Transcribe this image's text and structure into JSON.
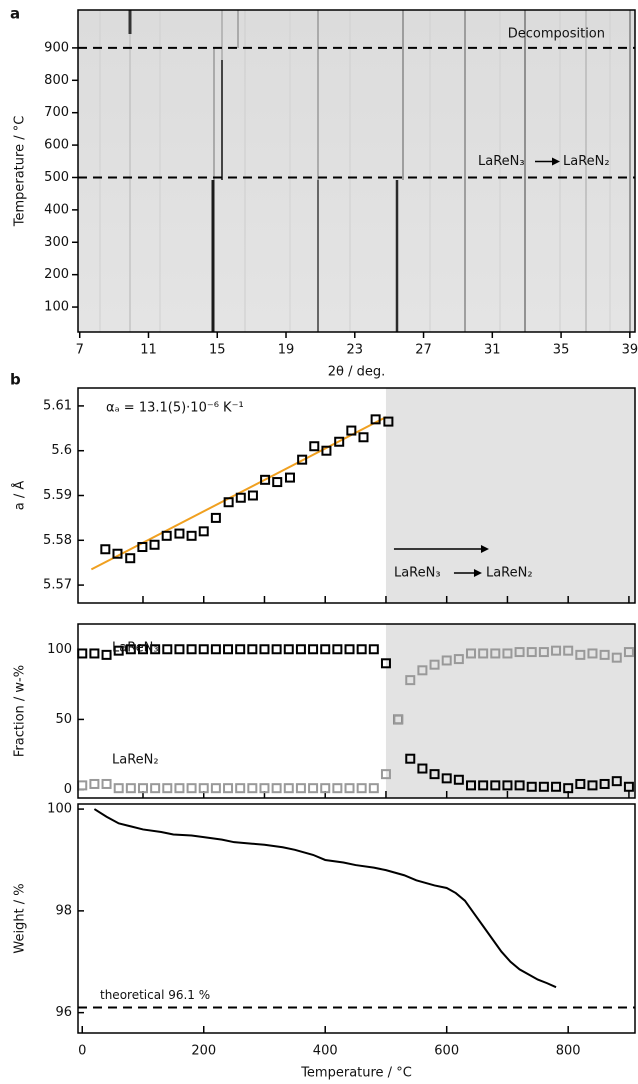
{
  "chart_data": [
    {
      "type": "image",
      "panel": "a",
      "x_label": "2θ / deg.",
      "y_label": "Temperature / °C",
      "xlim": [
        6.9,
        39.3
      ],
      "ylim": [
        23,
        1017
      ],
      "xticks": [
        7,
        11,
        15,
        19,
        23,
        27,
        31,
        35,
        39
      ],
      "yticks": [
        100,
        200,
        300,
        400,
        500,
        600,
        700,
        800,
        900
      ],
      "hlines": [
        {
          "value": 900,
          "label": "Decomposition"
        },
        {
          "value": 500,
          "label_from": "LaReN₃",
          "label_to": "LaReN₂"
        }
      ]
    },
    {
      "type": "scatter",
      "panel": "b",
      "y_label": "a / Å",
      "xlim": [
        -7,
        910
      ],
      "ylim": [
        5.566,
        5.614
      ],
      "xticks": [
        100,
        200,
        300,
        400,
        500,
        600,
        700,
        800,
        900
      ],
      "xtick_labels": false,
      "yticks": [
        5.57,
        5.58,
        5.59,
        5.6,
        5.61
      ],
      "shade_from": 500,
      "x": [
        38,
        58,
        79,
        99,
        119,
        139,
        160,
        180,
        200,
        220,
        241,
        261,
        281,
        301,
        321,
        342,
        362,
        382,
        402,
        423,
        443,
        463,
        483,
        504
      ],
      "series": [
        {
          "color": "#000000",
          "values": [
            5.578,
            5.577,
            5.576,
            5.5785,
            5.579,
            5.581,
            5.5815,
            5.581,
            5.582,
            5.585,
            5.5885,
            5.5895,
            5.59,
            5.5935,
            5.593,
            5.594,
            5.598,
            5.601,
            5.6,
            5.602,
            5.6045,
            5.603,
            5.607,
            5.6065
          ]
        }
      ],
      "fit": {
        "color": "#f0a020",
        "x": [
          15,
          500
        ],
        "values": [
          5.5735,
          5.6075
        ]
      },
      "annotation": "αₐ = 13.1(5)·10⁻⁶ K⁻¹",
      "transition": {
        "from": "LaReN₃",
        "to": "LaReN₂"
      }
    },
    {
      "type": "scatter",
      "y_label": "Fraction / w-%",
      "xlim": [
        -7,
        910
      ],
      "ylim": [
        -6,
        118
      ],
      "xticks": [
        100,
        200,
        300,
        400,
        500,
        600,
        700,
        800,
        900
      ],
      "xtick_labels": false,
      "yticks": [
        0,
        50,
        100
      ],
      "shade_from": 500,
      "x": [
        0,
        20,
        40,
        60,
        80,
        100,
        120,
        140,
        160,
        180,
        200,
        220,
        240,
        260,
        280,
        300,
        320,
        340,
        360,
        380,
        400,
        420,
        440,
        460,
        480,
        500,
        520,
        540,
        560,
        580,
        600,
        620,
        640,
        660,
        680,
        700,
        720,
        740,
        760,
        780,
        800,
        820,
        840,
        860,
        880,
        900
      ],
      "series": [
        {
          "name": "LaReN₃",
          "color": "#000000",
          "values": [
            97,
            97,
            96,
            99,
            100,
            100,
            100,
            100,
            100,
            100,
            100,
            100,
            100,
            100,
            100,
            100,
            100,
            100,
            100,
            100,
            100,
            100,
            100,
            100,
            100,
            90,
            50,
            22,
            15,
            11,
            8,
            7,
            3,
            3,
            3,
            3,
            3,
            2,
            2,
            2,
            1,
            4,
            3,
            4,
            6,
            2
          ]
        },
        {
          "name": "LaReN₂",
          "color": "#999999",
          "values": [
            3,
            4,
            4,
            1,
            1,
            1,
            1,
            1,
            1,
            1,
            1,
            1,
            1,
            1,
            1,
            1,
            1,
            1,
            1,
            1,
            1,
            1,
            1,
            1,
            1,
            11,
            50,
            78,
            85,
            89,
            92,
            93,
            97,
            97,
            97,
            97,
            98,
            98,
            98,
            99,
            99,
            96,
            97,
            96,
            94,
            98
          ]
        }
      ]
    },
    {
      "type": "line",
      "y_label": "Weight / %",
      "x_label": "Temperature / °C",
      "xlim": [
        -7,
        910
      ],
      "ylim": [
        95.6,
        100.1
      ],
      "xticks": [
        0,
        200,
        400,
        600,
        800
      ],
      "yticks": [
        96,
        98,
        100
      ],
      "x": [
        20,
        40,
        60,
        80,
        100,
        130,
        150,
        180,
        200,
        230,
        250,
        280,
        300,
        330,
        350,
        380,
        400,
        430,
        450,
        480,
        500,
        530,
        550,
        580,
        600,
        615,
        630,
        645,
        660,
        675,
        690,
        705,
        720,
        735,
        750,
        765,
        780
      ],
      "values": [
        100,
        99.85,
        99.72,
        99.66,
        99.6,
        99.55,
        99.5,
        99.48,
        99.45,
        99.4,
        99.35,
        99.32,
        99.3,
        99.25,
        99.2,
        99.1,
        99.0,
        98.95,
        98.9,
        98.85,
        98.8,
        98.7,
        98.6,
        98.5,
        98.45,
        98.35,
        98.2,
        97.95,
        97.7,
        97.45,
        97.2,
        97.0,
        96.85,
        96.75,
        96.65,
        96.58,
        96.5
      ],
      "color": "#000000",
      "hline": {
        "value": 96.1,
        "label": "theoretical 96.1 %"
      }
    }
  ]
}
